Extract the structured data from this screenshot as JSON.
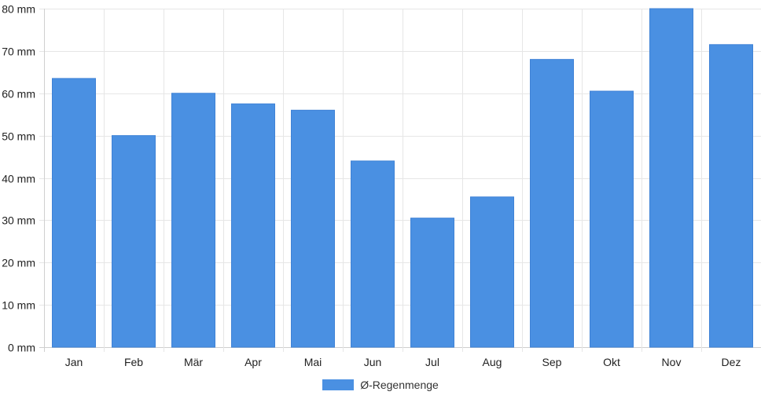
{
  "chart_data": {
    "type": "bar",
    "categories": [
      "Jan",
      "Feb",
      "Mär",
      "Apr",
      "Mai",
      "Jun",
      "Jul",
      "Aug",
      "Sep",
      "Okt",
      "Nov",
      "Dez"
    ],
    "series": [
      {
        "name": "Ø-Regenmenge",
        "values": [
          63.5,
          50,
          60,
          57.5,
          56,
          44,
          30.5,
          35.5,
          68,
          60.5,
          80,
          71.5
        ],
        "color": "#4a90e2"
      }
    ],
    "ylim": [
      0,
      80
    ],
    "yticks": [
      0,
      10,
      20,
      30,
      40,
      50,
      60,
      70,
      80
    ],
    "y_unit": "mm",
    "grid": true,
    "legend_position": "bottom"
  }
}
